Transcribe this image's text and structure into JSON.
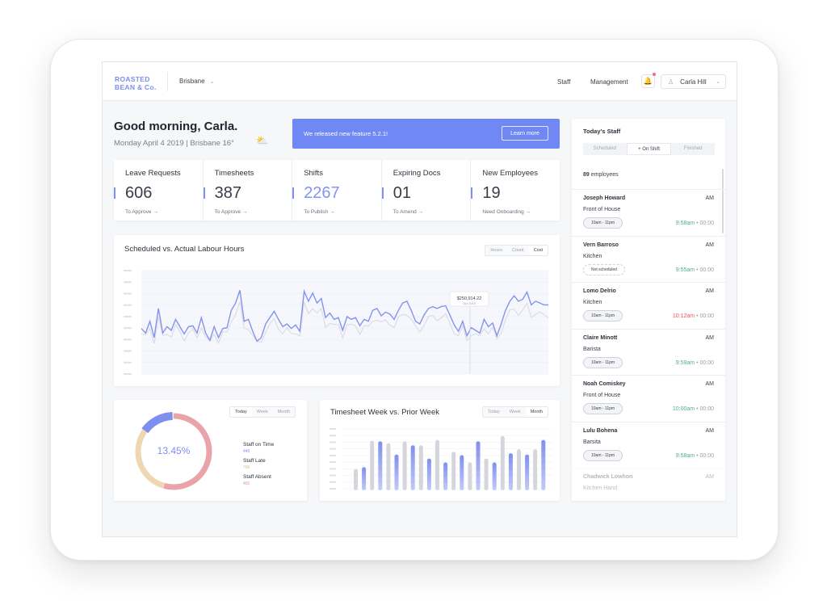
{
  "header": {
    "logo_line1": "ROASTED",
    "logo_line2": "BEAN & Co.",
    "location": "Brisbane",
    "nav": [
      "Staff",
      "Management"
    ],
    "user_name": "Carla Hill",
    "accent_color": "#7088f4"
  },
  "greeting": {
    "title": "Good morning, Carla.",
    "subtitle": "Monday April 4 2019  |  Brisbane 16°",
    "weather_icon": "partly-cloudy-icon"
  },
  "banner": {
    "text": "We released new feature 5.2.1!",
    "button": "Learn more"
  },
  "stats": [
    {
      "label": "Leave Requests",
      "value": "606",
      "link": "To Approve  →",
      "accent": false
    },
    {
      "label": "Timesheets",
      "value": "387",
      "link": "To Approve  →",
      "accent": false
    },
    {
      "label": "Shifts",
      "value": "2267",
      "link": "To Publish  →",
      "accent": true
    },
    {
      "label": "Expiring Docs",
      "value": "01",
      "link": "To Amend  →",
      "accent": false
    },
    {
      "label": "New Employees",
      "value": "19",
      "link": "Need Onboarding  →",
      "accent": false
    }
  ],
  "labour_chart": {
    "title": "Scheduled vs. Actual Labour Hours",
    "toggles": [
      "Hours",
      "Count",
      "Cost"
    ],
    "active_toggle": "Cost",
    "tooltip_value": "$250,914.22",
    "tooltip_date": "Jun 2019"
  },
  "donut": {
    "toggles": [
      "Today",
      "Week",
      "Month"
    ],
    "active_toggle": "Today",
    "center_label": "13.45%",
    "legend": [
      {
        "name": "Staff on Time",
        "value": "446",
        "color": "#7f8ff0"
      },
      {
        "name": "Staff Late",
        "value": "756",
        "color": "#e9c9a3"
      },
      {
        "name": "Staff Absent",
        "value": "401",
        "color": "#e59aa2"
      }
    ]
  },
  "timesheet_chart": {
    "title": "Timesheet Week vs. Prior Week",
    "toggles": [
      "Today",
      "Week",
      "Month"
    ],
    "active_toggle": "Month"
  },
  "staff": {
    "title": "Today's Staff",
    "tabs": [
      "Scheduled",
      "+ On Shift",
      "Finished"
    ],
    "active_tab": "+ On Shift",
    "count_number": "89",
    "count_label": "employees",
    "employees": [
      {
        "name": "Joseph Howard",
        "period": "AM",
        "role": "Front of House",
        "shift": "10am - 11pm",
        "dashed": false,
        "actual": "9:58am",
        "late": false,
        "rest": " • 00:00"
      },
      {
        "name": "Vern Barroso",
        "period": "AM",
        "role": "Kitchen",
        "shift": "Not scheduled",
        "dashed": true,
        "actual": "9:55am",
        "late": false,
        "rest": " • 00:00"
      },
      {
        "name": "Lomo Delrio",
        "period": "AM",
        "role": "Kitchen",
        "shift": "10am - 11pm",
        "dashed": false,
        "actual": "10:12am",
        "late": true,
        "rest": " • 00:00"
      },
      {
        "name": "Claire Minott",
        "period": "AM",
        "role": "Barista",
        "shift": "10am - 11pm",
        "dashed": false,
        "actual": "9:59am",
        "late": false,
        "rest": " • 00:00"
      },
      {
        "name": "Noah Comiskey",
        "period": "AM",
        "role": "Front of House",
        "shift": "10am - 11pm",
        "dashed": false,
        "actual": "10:00am",
        "late": false,
        "rest": " • 00:00"
      },
      {
        "name": "Lulu Bohena",
        "period": "AM",
        "role": "Barsita",
        "shift": "10am - 11pm",
        "dashed": false,
        "actual": "9:58am",
        "late": false,
        "rest": " • 00:00"
      },
      {
        "name": "Chadwick Lowhon",
        "period": "AM",
        "role": "Kitchen Hand",
        "shift": "",
        "dashed": false,
        "actual": "",
        "late": false,
        "rest": ""
      }
    ]
  }
}
